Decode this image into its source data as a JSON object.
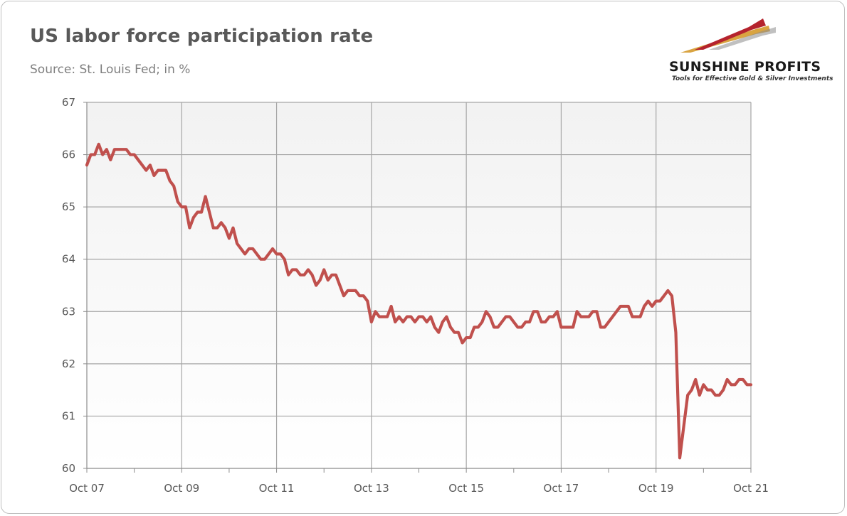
{
  "header": {
    "title": "US labor force participation rate",
    "subtitle": "Source: St. Louis Fed; in %"
  },
  "logo": {
    "name": "SUNSHINE PROFITS",
    "tagline": "Tools for Effective Gold & Silver Investments",
    "colors": [
      "#b5232d",
      "#d9a441",
      "#8c8c8c"
    ]
  },
  "chart_data": {
    "type": "line",
    "title": "US labor force participation rate",
    "subtitle": "Source: St. Louis Fed; in %",
    "xlabel": "",
    "ylabel": "",
    "ylim": [
      60,
      67
    ],
    "yticks": [
      60,
      61,
      62,
      63,
      64,
      65,
      66,
      67
    ],
    "x_start": "Oct 07",
    "x_end": "Oct 21",
    "xticks": [
      "Oct 07",
      "Oct 09",
      "Oct 11",
      "Oct 13",
      "Oct 15",
      "Oct 17",
      "Oct 19",
      "Oct 21"
    ],
    "grid": true,
    "plot_background": "gradient-gray",
    "line_color": "#c0504d",
    "series": [
      {
        "name": "",
        "values": [
          65.8,
          66.0,
          66.0,
          66.2,
          66.0,
          66.1,
          65.9,
          66.1,
          66.1,
          66.1,
          66.1,
          66.0,
          66.0,
          65.9,
          65.8,
          65.7,
          65.8,
          65.6,
          65.7,
          65.7,
          65.7,
          65.5,
          65.4,
          65.1,
          65.0,
          65.0,
          64.6,
          64.8,
          64.9,
          64.9,
          65.2,
          64.9,
          64.6,
          64.6,
          64.7,
          64.6,
          64.4,
          64.6,
          64.3,
          64.2,
          64.1,
          64.2,
          64.2,
          64.1,
          64.0,
          64.0,
          64.1,
          64.2,
          64.1,
          64.1,
          64.0,
          63.7,
          63.8,
          63.8,
          63.7,
          63.7,
          63.8,
          63.7,
          63.5,
          63.6,
          63.8,
          63.6,
          63.7,
          63.7,
          63.5,
          63.3,
          63.4,
          63.4,
          63.4,
          63.3,
          63.3,
          63.2,
          62.8,
          63.0,
          62.9,
          62.9,
          62.9,
          63.1,
          62.8,
          62.9,
          62.8,
          62.9,
          62.9,
          62.8,
          62.9,
          62.9,
          62.8,
          62.9,
          62.7,
          62.6,
          62.8,
          62.9,
          62.7,
          62.6,
          62.6,
          62.4,
          62.5,
          62.5,
          62.7,
          62.7,
          62.8,
          63.0,
          62.9,
          62.7,
          62.7,
          62.8,
          62.9,
          62.9,
          62.8,
          62.7,
          62.7,
          62.8,
          62.8,
          63.0,
          63.0,
          62.8,
          62.8,
          62.9,
          62.9,
          63.0,
          62.7,
          62.7,
          62.7,
          62.7,
          63.0,
          62.9,
          62.9,
          62.9,
          63.0,
          63.0,
          62.7,
          62.7,
          62.8,
          62.9,
          63.0,
          63.1,
          63.1,
          63.1,
          62.9,
          62.9,
          62.9,
          63.1,
          63.2,
          63.1,
          63.2,
          63.2,
          63.3,
          63.4,
          63.3,
          62.6,
          60.2,
          60.8,
          61.4,
          61.5,
          61.7,
          61.4,
          61.6,
          61.5,
          61.5,
          61.4,
          61.4,
          61.5,
          61.7,
          61.6,
          61.6,
          61.7,
          61.7,
          61.6,
          61.6
        ]
      }
    ]
  }
}
